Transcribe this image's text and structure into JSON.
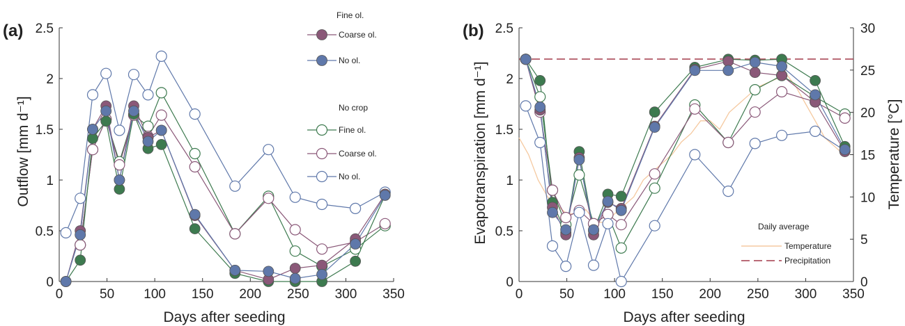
{
  "colors": {
    "fine": "#3d7a4f",
    "coarse": "#8a5878",
    "none": "#5f78aa",
    "temperature": "#f5c9a0",
    "precipitation": "#a33a4a"
  },
  "chart_data": [
    {
      "type": "line",
      "panel_label": "(a)",
      "xlabel": "Days after seeding",
      "ylabel": "Outflow [mm d⁻¹]",
      "xlim": [
        0,
        350
      ],
      "ylim": [
        0,
        2.5
      ],
      "xticks": [
        "0",
        "50",
        "100",
        "150",
        "200",
        "250",
        "300",
        "350"
      ],
      "yticks": [
        "0",
        "0.5",
        "1",
        "1.5",
        "2",
        "2.5"
      ],
      "legend": {
        "group_crop_title": "Fine ol.",
        "group_crop_entries": [
          "Coarse ol.",
          "No ol."
        ],
        "group_nocrop_title": "No crop",
        "group_nocrop_entries": [
          "Fine ol.",
          "Coarse ol.",
          "No ol."
        ]
      },
      "x": [
        7,
        22,
        35,
        49,
        63,
        78,
        93,
        107,
        142,
        184,
        219,
        247,
        275,
        310,
        341
      ],
      "series": [
        {
          "group": "crop",
          "color_key": "fine",
          "filled": true,
          "values": [
            0,
            0.21,
            1.41,
            1.58,
            0.91,
            1.65,
            1.31,
            1.35,
            0.52,
            0.08,
            0.0,
            0.0,
            0.0,
            0.2,
            0.85
          ]
        },
        {
          "group": "crop",
          "color_key": "coarse",
          "filled": true,
          "values": [
            0,
            0.5,
            1.5,
            1.73,
            1.0,
            1.73,
            1.42,
            1.49,
            0.65,
            0.11,
            0.02,
            0.13,
            0.16,
            0.42,
            0.86
          ]
        },
        {
          "group": "crop",
          "color_key": "none",
          "filled": true,
          "values": [
            0,
            0.46,
            1.5,
            1.68,
            1.0,
            1.68,
            1.38,
            1.49,
            0.66,
            0.11,
            0.1,
            0.03,
            0.07,
            0.37,
            0.85
          ]
        },
        {
          "group": "nocrop",
          "color_key": "fine",
          "filled": false,
          "values": [
            null,
            0.36,
            1.3,
            1.6,
            1.18,
            1.64,
            1.53,
            1.86,
            1.26,
            0.47,
            0.84,
            0.3,
            0.15,
            0.32,
            0.55
          ]
        },
        {
          "group": "nocrop",
          "color_key": "coarse",
          "filled": false,
          "values": [
            null,
            0.36,
            1.3,
            1.6,
            1.15,
            1.64,
            1.43,
            1.64,
            1.13,
            0.47,
            0.82,
            0.51,
            0.32,
            0.39,
            0.57
          ]
        },
        {
          "group": "nocrop",
          "color_key": "none",
          "filled": false,
          "values": [
            0.48,
            0.82,
            1.84,
            2.05,
            1.49,
            2.04,
            1.84,
            2.22,
            1.65,
            0.94,
            1.3,
            0.83,
            0.76,
            0.72,
            0.88
          ]
        }
      ]
    },
    {
      "type": "line",
      "panel_label": "(b)",
      "xlabel": "Days after seeding",
      "ylabel": "Evapotranspiration [mm d⁻¹]",
      "y2label": "Temperature [°C]",
      "xlim": [
        0,
        350
      ],
      "ylim": [
        0,
        2.5
      ],
      "y2lim": [
        0,
        30
      ],
      "xticks": [
        "0",
        "50",
        "100",
        "150",
        "200",
        "250",
        "300",
        "350"
      ],
      "yticks": [
        "0",
        "0.5",
        "1",
        "1.5",
        "2",
        "2.5"
      ],
      "y2ticks": [
        "0",
        "5",
        "10",
        "15",
        "20",
        "25",
        "30"
      ],
      "legend": {
        "title": "Daily average",
        "temperature_label": "Temperature",
        "precipitation_label": "Precipitation"
      },
      "precipitation_level_c": 26.3,
      "temperature_series": {
        "x": [
          0,
          10,
          20,
          30,
          40,
          50,
          60,
          70,
          80,
          90,
          100,
          110,
          120,
          130,
          140,
          150,
          160,
          170,
          180,
          190,
          200,
          210,
          220,
          230,
          240,
          250,
          260,
          270,
          280,
          290,
          300,
          310,
          320,
          330,
          340
        ],
        "values": [
          17,
          15,
          12,
          10,
          9,
          8,
          8,
          8.5,
          7,
          7,
          8,
          9,
          10,
          12,
          13,
          14,
          15,
          16.5,
          17.5,
          19,
          19,
          18,
          20,
          21,
          22,
          23,
          23.5,
          24,
          24.5,
          23,
          21,
          19,
          17,
          16,
          15
        ]
      },
      "x": [
        7,
        22,
        35,
        49,
        63,
        78,
        93,
        107,
        142,
        184,
        219,
        247,
        275,
        310,
        341
      ],
      "series": [
        {
          "group": "crop",
          "color_key": "fine",
          "filled": true,
          "values": [
            2.19,
            1.98,
            0.78,
            0.48,
            1.28,
            0.5,
            0.86,
            0.84,
            1.67,
            2.11,
            2.19,
            2.18,
            2.19,
            1.98,
            1.33
          ]
        },
        {
          "group": "crop",
          "color_key": "coarse",
          "filled": true,
          "values": [
            2.19,
            1.69,
            0.73,
            0.46,
            1.22,
            0.46,
            0.78,
            0.72,
            1.53,
            2.09,
            2.17,
            2.06,
            2.03,
            1.77,
            1.28
          ]
        },
        {
          "group": "crop",
          "color_key": "none",
          "filled": true,
          "values": [
            2.19,
            1.72,
            0.68,
            0.51,
            1.2,
            0.51,
            0.79,
            0.7,
            1.52,
            2.08,
            2.08,
            2.16,
            2.12,
            1.84,
            1.3
          ]
        },
        {
          "group": "nocrop",
          "color_key": "fine",
          "filled": false,
          "values": [
            2.19,
            1.82,
            0.9,
            0.56,
            1.05,
            0.57,
            0.66,
            0.33,
            0.92,
            1.74,
            1.37,
            1.89,
            2.03,
            1.82,
            1.65
          ]
        },
        {
          "group": "nocrop",
          "color_key": "coarse",
          "filled": false,
          "values": [
            2.19,
            1.67,
            0.9,
            0.63,
            0.7,
            0.57,
            0.66,
            0.56,
            1.06,
            1.7,
            1.37,
            1.67,
            1.87,
            1.77,
            1.61
          ]
        },
        {
          "group": "nocrop",
          "color_key": "none",
          "filled": false,
          "values": [
            1.73,
            1.37,
            0.35,
            0.15,
            0.68,
            0.16,
            0.57,
            0,
            0.55,
            1.25,
            0.89,
            1.36,
            1.44,
            1.48,
            1.29
          ]
        }
      ]
    }
  ]
}
